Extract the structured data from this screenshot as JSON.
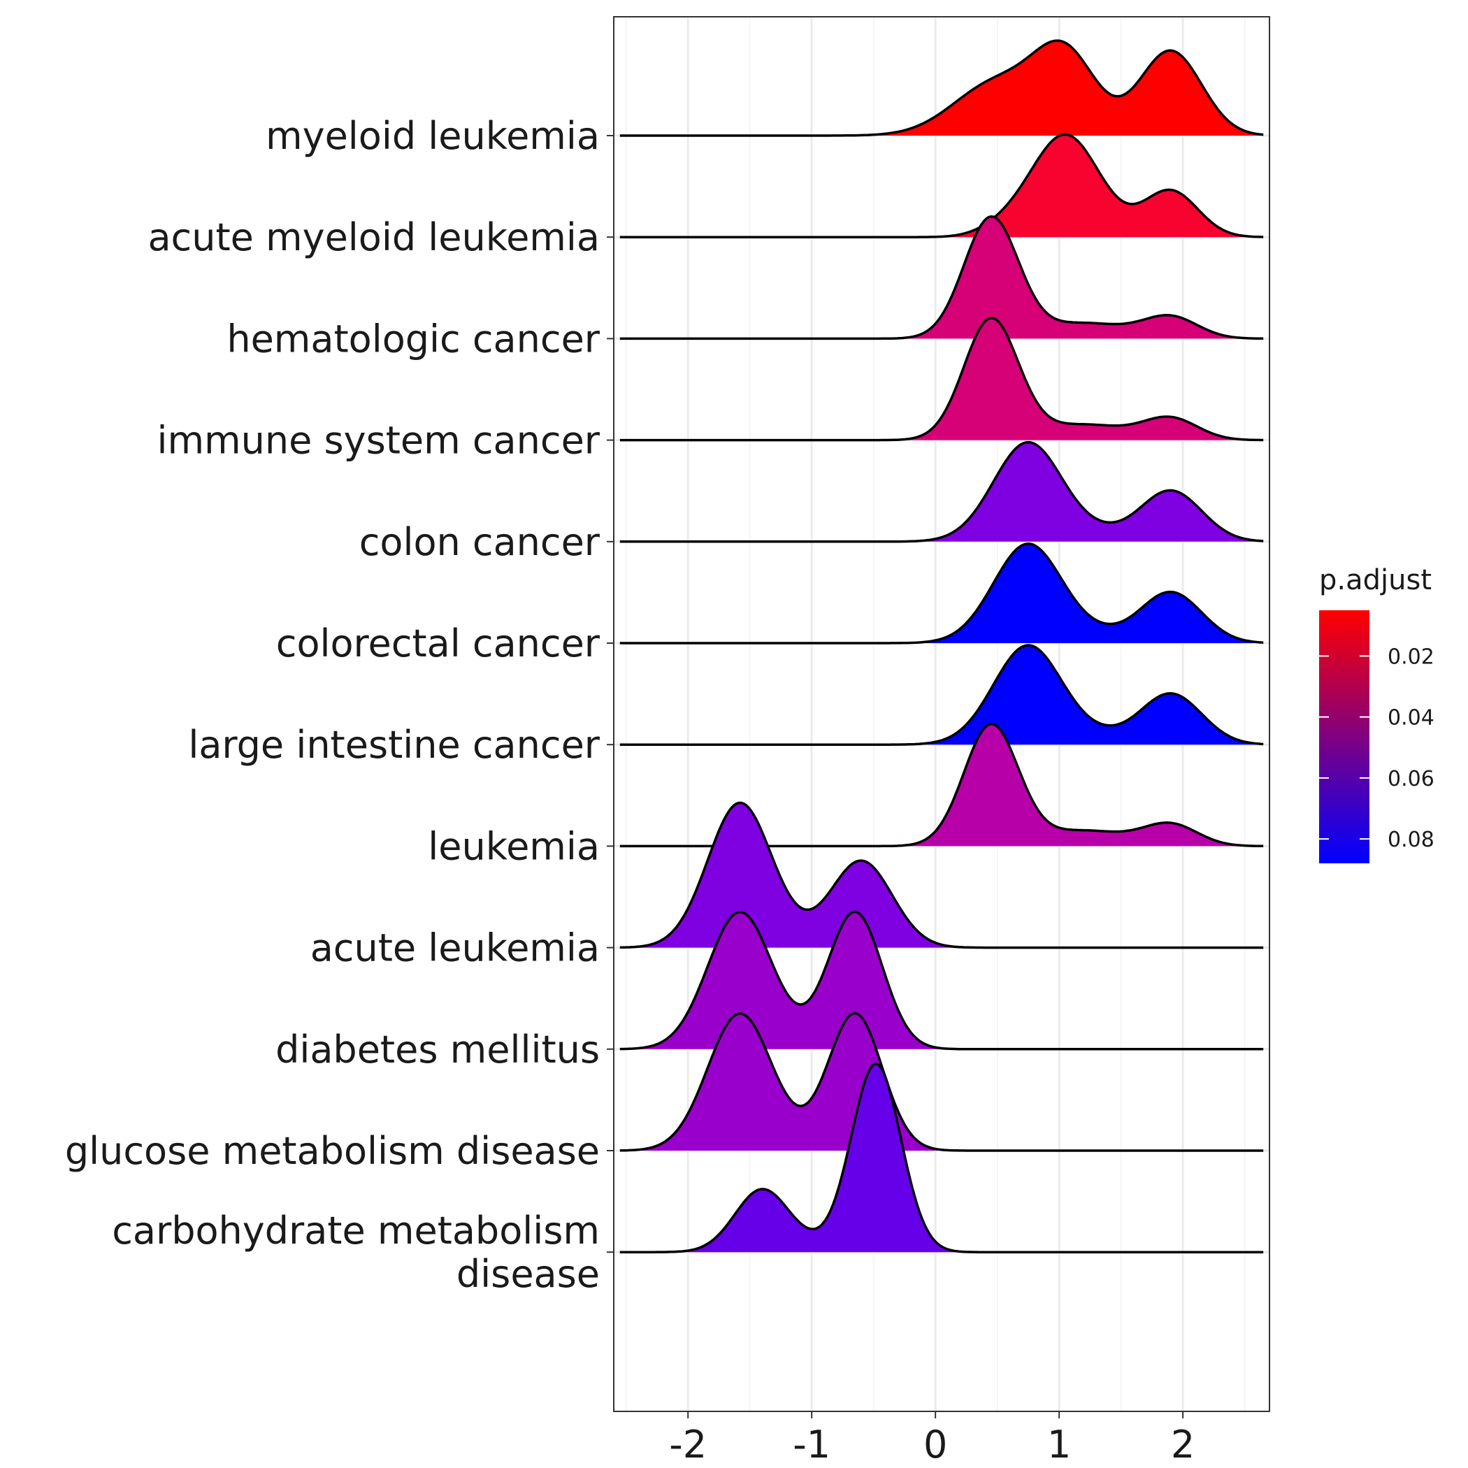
{
  "chart_data": {
    "type": "ridgeline",
    "xlim": [
      -2.6,
      2.7
    ],
    "x_ticks": [
      -2,
      -1,
      0,
      1,
      2
    ],
    "x_tick_labels": [
      "-2",
      "-1",
      "0",
      "1",
      "2"
    ],
    "grid": true,
    "legend": {
      "title": "p.adjust",
      "placement": "right",
      "range": [
        0.005,
        0.088
      ],
      "ticks": [
        0.02,
        0.04,
        0.06,
        0.08
      ],
      "tick_labels": [
        "0.02",
        "0.04",
        "0.06",
        "0.08"
      ],
      "low_color": "#ff0000",
      "high_color": "#0000ff"
    },
    "series": [
      {
        "name": "myeloid leukemia",
        "p_adjust": 0.006,
        "color": "#ff0000",
        "peaks": [
          {
            "mu": 0.5,
            "sigma": 0.35,
            "amp": 0.55
          },
          {
            "mu": 1.05,
            "sigma": 0.25,
            "amp": 0.8
          },
          {
            "mu": 1.9,
            "sigma": 0.25,
            "amp": 0.88
          }
        ]
      },
      {
        "name": "acute myeloid leukemia",
        "p_adjust": 0.02,
        "color": "#f8022f",
        "peaks": [
          {
            "mu": 1.05,
            "sigma": 0.28,
            "amp": 1.06
          },
          {
            "mu": 1.9,
            "sigma": 0.22,
            "amp": 0.48
          },
          {
            "mu": 0.55,
            "sigma": 0.2,
            "amp": 0.08
          }
        ]
      },
      {
        "name": "hematologic cancer",
        "p_adjust": 0.045,
        "color": "#d60077",
        "peaks": [
          {
            "mu": 0.45,
            "sigma": 0.22,
            "amp": 1.25
          },
          {
            "mu": 1.2,
            "sigma": 0.35,
            "amp": 0.16
          },
          {
            "mu": 1.9,
            "sigma": 0.22,
            "amp": 0.22
          }
        ]
      },
      {
        "name": "immune system cancer",
        "p_adjust": 0.045,
        "color": "#d60077",
        "peaks": [
          {
            "mu": 0.45,
            "sigma": 0.22,
            "amp": 1.25
          },
          {
            "mu": 1.2,
            "sigma": 0.35,
            "amp": 0.16
          },
          {
            "mu": 1.9,
            "sigma": 0.22,
            "amp": 0.22
          }
        ]
      },
      {
        "name": "colon cancer",
        "p_adjust": 0.07,
        "color": "#7f00e0",
        "peaks": [
          {
            "mu": 0.75,
            "sigma": 0.28,
            "amp": 1.03
          },
          {
            "mu": 1.9,
            "sigma": 0.25,
            "amp": 0.53
          },
          {
            "mu": 1.35,
            "sigma": 0.2,
            "amp": 0.06
          }
        ]
      },
      {
        "name": "colorectal cancer",
        "p_adjust": 0.088,
        "color": "#0000ff",
        "peaks": [
          {
            "mu": 0.75,
            "sigma": 0.28,
            "amp": 1.03
          },
          {
            "mu": 1.9,
            "sigma": 0.25,
            "amp": 0.53
          },
          {
            "mu": 1.35,
            "sigma": 0.2,
            "amp": 0.06
          }
        ]
      },
      {
        "name": "large intestine cancer",
        "p_adjust": 0.088,
        "color": "#0000ff",
        "peaks": [
          {
            "mu": 0.75,
            "sigma": 0.28,
            "amp": 1.03
          },
          {
            "mu": 1.9,
            "sigma": 0.25,
            "amp": 0.53
          },
          {
            "mu": 1.35,
            "sigma": 0.2,
            "amp": 0.06
          }
        ]
      },
      {
        "name": "leukemia",
        "p_adjust": 0.055,
        "color": "#b800a8",
        "peaks": [
          {
            "mu": 0.45,
            "sigma": 0.22,
            "amp": 1.25
          },
          {
            "mu": 1.2,
            "sigma": 0.35,
            "amp": 0.16
          },
          {
            "mu": 1.9,
            "sigma": 0.22,
            "amp": 0.22
          }
        ]
      },
      {
        "name": "acute leukemia",
        "p_adjust": 0.07,
        "color": "#7f00e0",
        "peaks": [
          {
            "mu": -1.58,
            "sigma": 0.26,
            "amp": 1.5
          },
          {
            "mu": -0.6,
            "sigma": 0.25,
            "amp": 0.9
          },
          {
            "mu": -1.1,
            "sigma": 0.2,
            "amp": 0.03
          }
        ]
      },
      {
        "name": "diabetes mellitus",
        "p_adjust": 0.058,
        "color": "#9900cc",
        "peaks": [
          {
            "mu": -1.58,
            "sigma": 0.26,
            "amp": 1.42
          },
          {
            "mu": -0.65,
            "sigma": 0.22,
            "amp": 1.42
          },
          {
            "mu": -1.1,
            "sigma": 0.2,
            "amp": 0.03
          }
        ]
      },
      {
        "name": "glucose metabolism disease",
        "p_adjust": 0.058,
        "color": "#9900cc",
        "peaks": [
          {
            "mu": -1.58,
            "sigma": 0.26,
            "amp": 1.42
          },
          {
            "mu": -0.65,
            "sigma": 0.22,
            "amp": 1.42
          },
          {
            "mu": -1.1,
            "sigma": 0.2,
            "amp": 0.03
          }
        ]
      },
      {
        "name": "carbohydrate metabolism\ndisease",
        "p_adjust": 0.075,
        "color": "#6600e8",
        "peaks": [
          {
            "mu": -1.4,
            "sigma": 0.22,
            "amp": 0.65
          },
          {
            "mu": -0.48,
            "sigma": 0.2,
            "amp": 1.95
          },
          {
            "mu": -0.95,
            "sigma": 0.2,
            "amp": 0.05
          }
        ]
      }
    ]
  }
}
